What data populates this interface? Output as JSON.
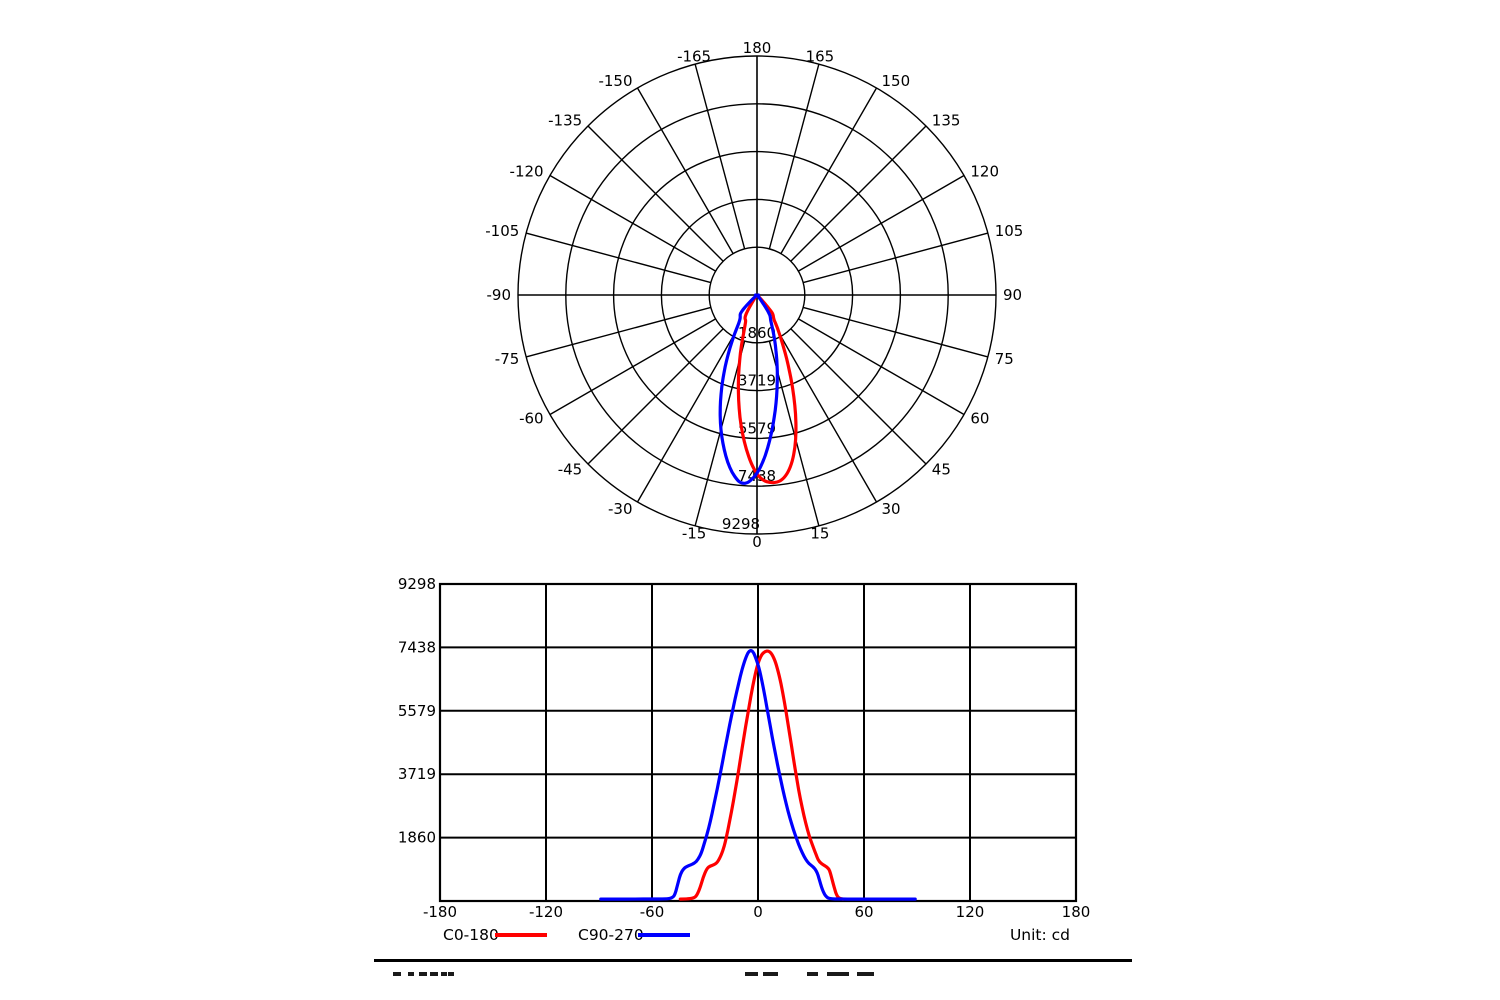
{
  "legend": {
    "items": [
      {
        "label": "C0-180",
        "color": "#ff0000"
      },
      {
        "label": "C90-270",
        "color": "#0000ff"
      }
    ],
    "unit_label": "Unit: cd"
  },
  "chart_data": [
    {
      "type": "polar",
      "description": "luminous intensity distribution, 0 deg at bottom, values in candela",
      "angle_unit": "deg",
      "angle_tick_step_deg": 15,
      "angle_labels": [
        -165,
        -150,
        -135,
        -120,
        -105,
        -90,
        -75,
        -60,
        -45,
        -30,
        -15,
        0,
        15,
        30,
        45,
        60,
        75,
        90,
        105,
        120,
        135,
        150,
        165,
        180
      ],
      "radial_ticks_cd": [
        1860,
        3719,
        5579,
        7438,
        9298
      ],
      "rmax_cd": 9298,
      "grid": true,
      "series": [
        {
          "name": "C0-180",
          "color": "#ff0000",
          "points_deg_cd": [
            [
              -44,
              55
            ],
            [
              -40,
              60
            ],
            [
              -37,
              80
            ],
            [
              -35,
              130
            ],
            [
              -33,
              350
            ],
            [
              -31,
              700
            ],
            [
              -29,
              950
            ],
            [
              -27,
              1030
            ],
            [
              -25,
              1060
            ],
            [
              -23,
              1130
            ],
            [
              -21,
              1320
            ],
            [
              -19,
              1620
            ],
            [
              -18,
              1850
            ],
            [
              -16,
              2350
            ],
            [
              -14,
              2900
            ],
            [
              -12,
              3500
            ],
            [
              -10,
              4150
            ],
            [
              -8,
              4800
            ],
            [
              -6,
              5420
            ],
            [
              -4,
              6020
            ],
            [
              -2,
              6560
            ],
            [
              0,
              6980
            ],
            [
              2,
              7230
            ],
            [
              4,
              7320
            ],
            [
              6,
              7340
            ],
            [
              8,
              7240
            ],
            [
              10,
              7000
            ],
            [
              12,
              6620
            ],
            [
              14,
              6120
            ],
            [
              16,
              5520
            ],
            [
              18,
              4870
            ],
            [
              20,
              4200
            ],
            [
              22,
              3560
            ],
            [
              24,
              2980
            ],
            [
              26,
              2500
            ],
            [
              28,
              2080
            ],
            [
              30,
              1750
            ],
            [
              32,
              1480
            ],
            [
              33,
              1350
            ],
            [
              34,
              1200
            ],
            [
              36,
              1090
            ],
            [
              38,
              1030
            ],
            [
              40,
              950
            ],
            [
              41,
              820
            ],
            [
              42,
              620
            ],
            [
              43,
              420
            ],
            [
              44,
              240
            ],
            [
              45,
              130
            ],
            [
              46,
              80
            ],
            [
              48,
              55
            ]
          ]
        },
        {
          "name": "C90-270",
          "color": "#0000ff",
          "points_deg_cd": [
            [
              -89,
              55
            ],
            [
              -80,
              56
            ],
            [
              -70,
              57
            ],
            [
              -60,
              58
            ],
            [
              -52,
              62
            ],
            [
              -50,
              70
            ],
            [
              -48,
              110
            ],
            [
              -47,
              200
            ],
            [
              -46,
              380
            ],
            [
              -45,
              580
            ],
            [
              -44,
              780
            ],
            [
              -42,
              960
            ],
            [
              -40,
              1020
            ],
            [
              -38,
              1060
            ],
            [
              -36,
              1110
            ],
            [
              -34,
              1210
            ],
            [
              -32,
              1410
            ],
            [
              -30,
              1760
            ],
            [
              -28,
              2110
            ],
            [
              -26,
              2560
            ],
            [
              -24,
              3060
            ],
            [
              -22,
              3560
            ],
            [
              -20,
              4100
            ],
            [
              -18,
              4650
            ],
            [
              -16,
              5180
            ],
            [
              -14,
              5680
            ],
            [
              -12,
              6150
            ],
            [
              -10,
              6600
            ],
            [
              -8,
              6980
            ],
            [
              -6,
              7250
            ],
            [
              -5,
              7330
            ],
            [
              -4,
              7350
            ],
            [
              -3,
              7320
            ],
            [
              -2,
              7230
            ],
            [
              0,
              6950
            ],
            [
              2,
              6520
            ],
            [
              4,
              5980
            ],
            [
              6,
              5400
            ],
            [
              8,
              4820
            ],
            [
              10,
              4280
            ],
            [
              12,
              3760
            ],
            [
              14,
              3280
            ],
            [
              16,
              2840
            ],
            [
              18,
              2440
            ],
            [
              20,
              2100
            ],
            [
              22,
              1800
            ],
            [
              24,
              1530
            ],
            [
              26,
              1310
            ],
            [
              28,
              1140
            ],
            [
              30,
              1050
            ],
            [
              32,
              960
            ],
            [
              33,
              880
            ],
            [
              34,
              760
            ],
            [
              35,
              580
            ],
            [
              36,
              400
            ],
            [
              37,
              260
            ],
            [
              38,
              170
            ],
            [
              39,
              110
            ],
            [
              40,
              80
            ],
            [
              42,
              62
            ],
            [
              45,
              58
            ],
            [
              50,
              57
            ],
            [
              60,
              56
            ],
            [
              70,
              55
            ],
            [
              80,
              55
            ],
            [
              89,
              55
            ]
          ]
        }
      ]
    },
    {
      "type": "line",
      "description": "same two C-plane curves plotted on cartesian axes",
      "x_ticks": [
        -180,
        -120,
        -60,
        0,
        60,
        120,
        180
      ],
      "y_ticks": [
        1860,
        3719,
        5579,
        7438,
        9298
      ],
      "xlim": [
        -180,
        180
      ],
      "ylim": [
        0,
        9298
      ],
      "grid": true,
      "legend_position": "bottom",
      "unit": "cd",
      "series_source": "same series as polar chart (chart_data[0].series)"
    }
  ]
}
